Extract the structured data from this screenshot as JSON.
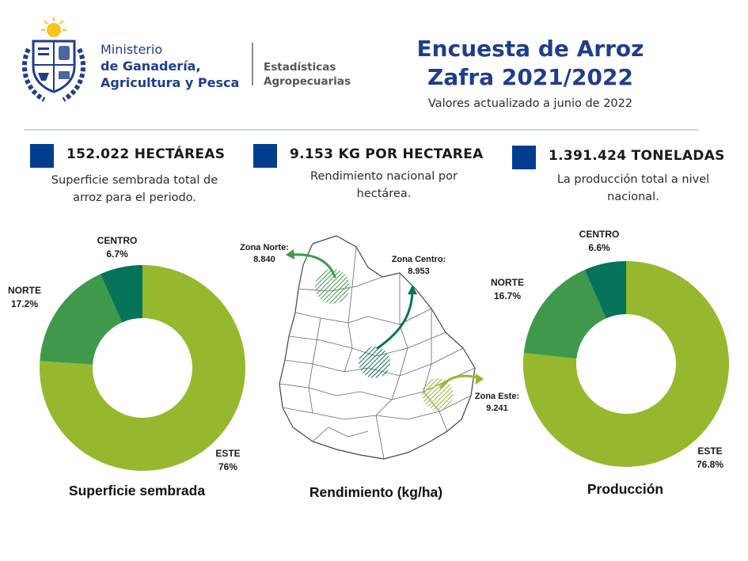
{
  "header": {
    "ministry": {
      "line1": "Ministerio",
      "line2": "de Ganadería,",
      "line3": "Agricultura y Pesca"
    },
    "unit": {
      "line1": "Estadísticas",
      "line2": "Agropecuarias"
    },
    "title_line1": "Encuesta de Arroz",
    "title_line2": "Zafra 2021/2022",
    "subtitle": "Valores actualizado a junio de  2022"
  },
  "kpis": [
    {
      "value": "152.022 HECTÁREAS",
      "description_line1": "Superficie sembrada total de",
      "description_line2": "arroz para el periodo."
    },
    {
      "value": "9.153 KG POR HECTAREA",
      "description_line1": "Rendimiento nacional por",
      "description_line2": "hectárea."
    },
    {
      "value": "1.391.424 TONELADAS",
      "description_line1": "La producción total a nivel",
      "description_line2": "nacional."
    }
  ],
  "colors": {
    "brand_blue": "#1f3e8c",
    "kpi_square": "#003d8f",
    "este": "#95b82e",
    "norte": "#3e9a4a",
    "centro": "#07735a"
  },
  "chart_data": [
    {
      "type": "pie",
      "variant": "donut",
      "title": "Superficie sembrada",
      "categories": [
        "ESTE",
        "NORTE",
        "CENTRO"
      ],
      "values": [
        76,
        17.2,
        6.7
      ],
      "value_labels": [
        "76%",
        "17.2%",
        "6.7%"
      ]
    },
    {
      "type": "map",
      "title": "Rendimiento (kg/ha)",
      "zones": [
        {
          "name": "Zona Norte:",
          "value": "8.840"
        },
        {
          "name": "Zona Centro:",
          "value": "8.953"
        },
        {
          "name": "Zona Este:",
          "value": "9.241"
        }
      ]
    },
    {
      "type": "pie",
      "variant": "donut",
      "title": "Producción",
      "categories": [
        "ESTE",
        "NORTE",
        "CENTRO"
      ],
      "values": [
        76.8,
        16.7,
        6.6
      ],
      "value_labels": [
        "76.8%",
        "16.7%",
        "6.6%"
      ]
    }
  ]
}
